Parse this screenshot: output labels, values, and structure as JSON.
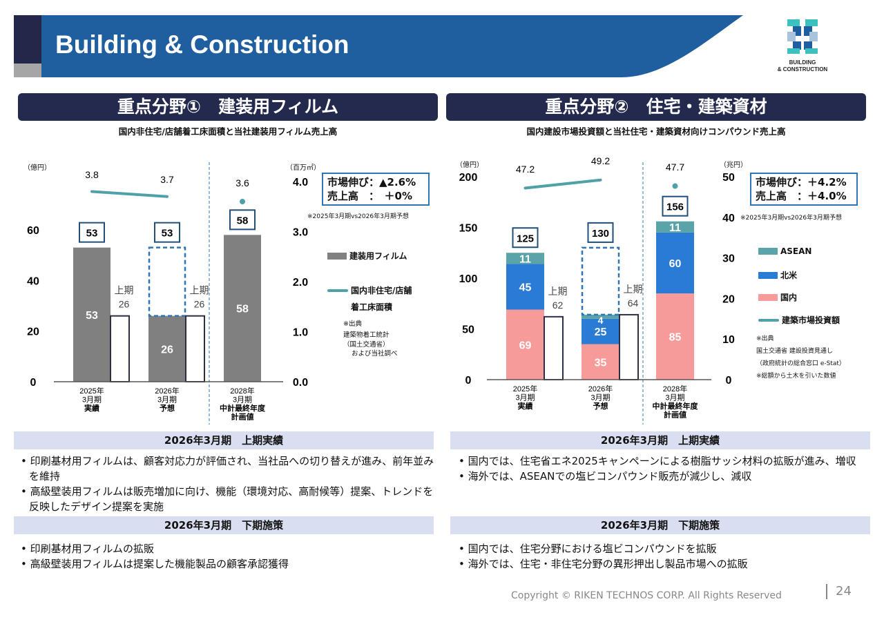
{
  "header": {
    "title": "Building & Construction",
    "logo_text": [
      "BUILDING",
      "& CONSTRUCTION"
    ]
  },
  "left": {
    "section_title": "重点分野①　建装用フィルム",
    "subtitle": "国内非住宅/店舗着工床面積と当社建装用フィルム売上高",
    "unit_left": "（億円）",
    "unit_right": "（百万㎡）",
    "growth_box": [
      "市場伸び：▲2.6%",
      "売上高　：　＋0%"
    ],
    "growth_note": "※2025年3月期vs2026年3月期予想",
    "legend": [
      "建装用フィルム",
      "国内非住宅/店舗",
      "着工床面積"
    ],
    "source": [
      "※出典",
      "建築物着工統計",
      "（国土交通省）",
      "および当社調べ"
    ],
    "band1": "2026年3月期　上期実績",
    "bullets1": [
      "印刷基材用フィルムは、顧客対応力が評価され、当社品への切り替えが進み、前年並みを維持",
      "高級壁装用フィルムは販売増加に向け、機能（環境対応、高耐候等）提案、トレンドを反映したデザイン提案を実施"
    ],
    "band2": "2026年3月期　下期施策",
    "bullets2": [
      "印刷基材用フィルムの拡販",
      "高級壁装用フィルムは提案した機能製品の顧客承認獲得"
    ]
  },
  "right": {
    "section_title": "重点分野②　住宅・建築資材",
    "subtitle": "国内建設市場投資額と当社住宅・建築資材向けコンパウンド売上高",
    "unit_left": "（億円）",
    "unit_right": "（兆円）",
    "growth_box": [
      "市場伸び：＋4.2%",
      "売上高　：＋4.0%"
    ],
    "growth_note": "※2025年3月期vs2026年3月期予想",
    "legend": [
      "ASEAN",
      "北米",
      "国内",
      "建築市場投資額"
    ],
    "source": [
      "※出典",
      "国土交通省 建設投資見通し",
      "（政府統計の総合窓口 e-Stat）",
      "※総額から土木を引いた数値"
    ],
    "band1": "2026年3月期　上期実績",
    "bullets1": [
      "国内では、住宅省エネ2025キャンペーンによる樹脂サッシ材料の拡販が進み、増収",
      "海外では、ASEANでの塩ビコンパウンド販売が減少し、減収"
    ],
    "band2": "2026年3月期　下期施策",
    "bullets2": [
      "国内では、住宅分野における塩ビコンパウンドを拡販",
      "海外では、住宅・非住宅分野の異形押出し製品市場への拡販"
    ]
  },
  "footer": {
    "copyright": "Copyright © RIKEN TECHNOS CORP. All Rights Reserved",
    "page": "24"
  },
  "colors": {
    "navy": "#232a4e",
    "blue": "#1f5fa0",
    "gray_bar": "#808080",
    "teal": "#4fa1a8",
    "asean": "#5aa3a8",
    "na": "#2a7bd4",
    "domestic": "#f79a9a"
  },
  "chart_data": [
    {
      "type": "bar",
      "title": "国内非住宅/店舗着工床面積と当社建装用フィルム売上高",
      "categories": [
        [
          "2025年",
          "3月期",
          "実績"
        ],
        [
          "2026年",
          "3月期",
          "予想"
        ],
        [
          "2028年",
          "3月期",
          "中計最終年度",
          "計画値"
        ]
      ],
      "series": [
        {
          "name": "建装用フィルム",
          "values": [
            53,
            26,
            58
          ]
        }
      ],
      "totals": [
        53,
        53,
        58
      ],
      "first_half": [
        {
          "label": "上期",
          "value": 26
        },
        {
          "label": "上期",
          "value": 26
        },
        null
      ],
      "forecast_outline": [
        null,
        [
          26,
          53
        ],
        null
      ],
      "line": {
        "name": "国内非住宅/店舗着工床面積",
        "values": [
          3.8,
          3.7,
          3.6
        ]
      },
      "y_left": {
        "ylim": [
          0,
          60
        ],
        "ticks": [
          "0",
          "20",
          "40",
          "60"
        ]
      },
      "y_right": {
        "ylim": [
          0,
          4
        ],
        "ticks": [
          "0.0",
          "1.0",
          "2.0",
          "3.0",
          "4.0"
        ]
      }
    },
    {
      "type": "bar",
      "title": "国内建設市場投資額と当社住宅・建築資材向けコンパウンド売上高",
      "categories": [
        [
          "2025年",
          "3月期",
          "実績"
        ],
        [
          "2026年",
          "3月期",
          "予想"
        ],
        [
          "2028年",
          "3月期",
          "中計最終年度",
          "計画値"
        ]
      ],
      "series": [
        {
          "name": "国内",
          "values": [
            69,
            35,
            85
          ]
        },
        {
          "name": "北米",
          "values": [
            45,
            25,
            60
          ]
        },
        {
          "name": "ASEAN",
          "values": [
            11,
            4,
            11
          ]
        }
      ],
      "totals": [
        125,
        130,
        156
      ],
      "first_half": [
        {
          "label": "上期",
          "value": 62
        },
        {
          "label": "上期",
          "value": 64
        },
        null
      ],
      "forecast_outline": [
        null,
        [
          64,
          130
        ],
        null
      ],
      "line": {
        "name": "建築市場投資額",
        "values": [
          47.2,
          49.2,
          47.7
        ]
      },
      "y_left": {
        "ylim": [
          0,
          200
        ],
        "ticks": [
          "0",
          "50",
          "100",
          "150",
          "200"
        ]
      },
      "y_right": {
        "ylim": [
          0,
          50
        ],
        "ticks": [
          "0",
          "10",
          "20",
          "30",
          "40",
          "50"
        ]
      }
    }
  ]
}
